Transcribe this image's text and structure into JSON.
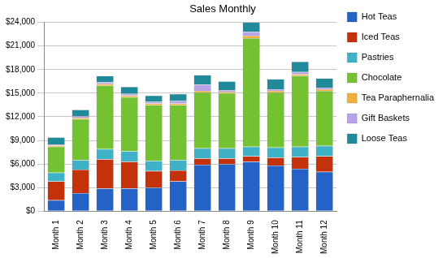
{
  "chart_data": {
    "type": "bar",
    "title": "Sales Monthly",
    "stacked": true,
    "grid": true,
    "legend": "right",
    "categories": [
      "Month 1",
      "Month 2",
      "Month 3",
      "Month 4",
      "Month 5",
      "Month 6",
      "Month 7",
      "Month 8",
      "Month 9",
      "Month 10",
      "Month 11",
      "Month 12"
    ],
    "series": [
      {
        "name": "Hot Teas",
        "color": "#2462c6",
        "values": [
          1400,
          2300,
          2900,
          2900,
          3000,
          3800,
          5900,
          6000,
          6300,
          5800,
          5400,
          5000
        ]
      },
      {
        "name": "Iced Teas",
        "color": "#c4320c",
        "values": [
          2400,
          3000,
          3700,
          3400,
          2100,
          1400,
          800,
          700,
          700,
          1000,
          1500,
          2000
        ]
      },
      {
        "name": "Pastries",
        "color": "#40b2c8",
        "values": [
          1100,
          1200,
          1300,
          1300,
          1300,
          1300,
          1300,
          1300,
          1200,
          1300,
          1300,
          1300
        ]
      },
      {
        "name": "Chocolate",
        "color": "#74c232",
        "values": [
          3300,
          5200,
          8100,
          6900,
          7100,
          7000,
          7100,
          7000,
          13800,
          7000,
          9000,
          7000
        ]
      },
      {
        "name": "Tea Paraphernalia",
        "color": "#f0b040",
        "values": [
          150,
          200,
          200,
          200,
          200,
          200,
          200,
          200,
          300,
          200,
          200,
          200
        ]
      },
      {
        "name": "Gift Baskets",
        "color": "#b8a2ea",
        "values": [
          150,
          200,
          200,
          200,
          200,
          300,
          800,
          200,
          500,
          200,
          300,
          200
        ]
      },
      {
        "name": "Loose Teas",
        "color": "#208a9a",
        "values": [
          900,
          800,
          800,
          900,
          800,
          900,
          1200,
          1100,
          1200,
          1300,
          1300,
          1200
        ]
      }
    ],
    "ylim": [
      0,
      24000
    ],
    "yticks": [
      {
        "value": 0,
        "label": "$0"
      },
      {
        "value": 3000,
        "label": "$3,000"
      },
      {
        "value": 6000,
        "label": "$6,000"
      },
      {
        "value": 9000,
        "label": "$9,000"
      },
      {
        "value": 12000,
        "label": "$12,000"
      },
      {
        "value": 15000,
        "label": "$15,000"
      },
      {
        "value": 18000,
        "label": "$18,000"
      },
      {
        "value": 21000,
        "label": "$21,000"
      },
      {
        "value": 24000,
        "label": "$24,000"
      }
    ]
  }
}
